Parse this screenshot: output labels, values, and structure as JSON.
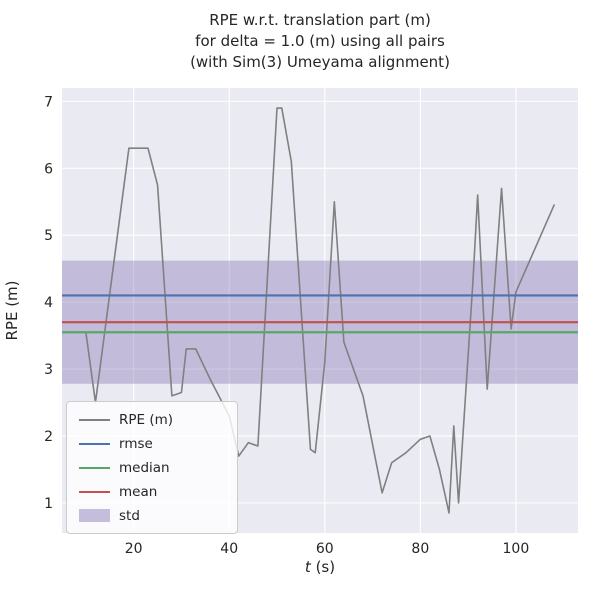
{
  "figure": {
    "background": "#ffffff",
    "axes_background": "#eaeaf2",
    "grid_color": "#ffffff",
    "text_color": "#262626"
  },
  "chart_data": {
    "type": "line",
    "title_lines": [
      "RPE w.r.t. translation part (m)",
      "for delta = 1.0 (m) using all pairs",
      "(with Sim(3) Umeyama alignment)"
    ],
    "xlabel_italic": "t",
    "xlabel_rest": " (s)",
    "ylabel": "RPE (m)",
    "xlim": [
      5,
      113
    ],
    "ylim": [
      0.55,
      7.2
    ],
    "xticks": [
      20,
      40,
      60,
      80,
      100
    ],
    "yticks": [
      1,
      2,
      3,
      4,
      5,
      6,
      7
    ],
    "grid": true,
    "legend_position": "lower-left",
    "series": [
      {
        "name": "RPE (m)",
        "color": "#808080",
        "x": [
          10,
          12,
          19,
          23,
          25,
          28,
          30,
          31,
          33,
          36,
          40,
          42,
          44,
          46,
          50,
          51,
          53,
          57,
          58,
          60,
          62,
          64,
          68,
          72,
          74,
          77,
          80,
          82,
          84,
          86,
          87,
          88,
          91,
          92,
          94,
          97,
          99,
          100,
          108
        ],
        "y": [
          3.55,
          2.5,
          6.3,
          6.3,
          5.75,
          2.6,
          2.65,
          3.3,
          3.3,
          2.85,
          2.3,
          1.7,
          1.9,
          1.85,
          6.9,
          6.9,
          6.1,
          1.8,
          1.75,
          3.1,
          5.5,
          3.4,
          2.6,
          1.15,
          1.6,
          1.75,
          1.95,
          2.0,
          1.5,
          0.85,
          2.15,
          1.0,
          4.3,
          5.6,
          2.7,
          5.7,
          3.6,
          4.15,
          5.45
        ]
      }
    ],
    "stat_lines": [
      {
        "name": "rmse",
        "value": 4.1,
        "color": "#4c72b0"
      },
      {
        "name": "median",
        "value": 3.55,
        "color": "#55a868"
      },
      {
        "name": "mean",
        "value": 3.7,
        "color": "#c44e52"
      }
    ],
    "band": {
      "name": "std",
      "min": 2.78,
      "max": 4.62,
      "color": "#8172b2",
      "opacity": 0.38
    }
  },
  "legend": {
    "items": [
      {
        "key": "rpe",
        "label": "RPE (m)",
        "swatch": "line",
        "color": "#808080",
        "opacity": 1
      },
      {
        "key": "rmse",
        "label": "rmse",
        "swatch": "line",
        "color": "#4c72b0",
        "opacity": 1
      },
      {
        "key": "median",
        "label": "median",
        "swatch": "line",
        "color": "#55a868",
        "opacity": 1
      },
      {
        "key": "mean",
        "label": "mean",
        "swatch": "line",
        "color": "#c44e52",
        "opacity": 1
      },
      {
        "key": "std",
        "label": "std",
        "swatch": "patch",
        "color": "#8172b2",
        "opacity": 0.45
      }
    ]
  }
}
